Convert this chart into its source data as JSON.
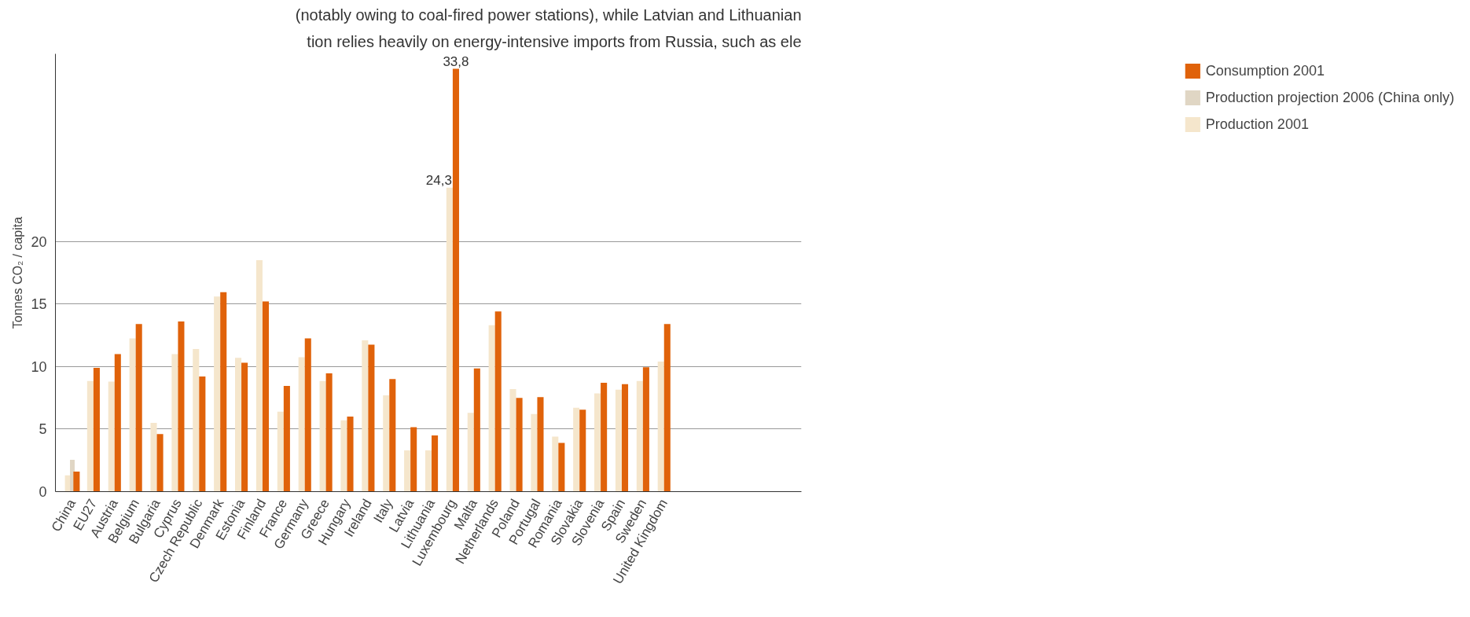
{
  "chart_data": {
    "type": "bar",
    "ylabel": "Tonnes CO₂ / capita",
    "categories": [
      "China",
      "EU27",
      "Austria",
      "Belgium",
      "Bulgaria",
      "Cyprus",
      "Czech Republic",
      "Denmark",
      "Estonia",
      "Finland",
      "France",
      "Germany",
      "Greece",
      "Hungary",
      "Ireland",
      "Italy",
      "Latvia",
      "Lithuania",
      "Luxembourg",
      "Malta",
      "Netherlands",
      "Poland",
      "Portugal",
      "Romania",
      "Slovakia",
      "Slovenia",
      "Spain",
      "Sweden",
      "United Kingdom"
    ],
    "series": [
      {
        "name": "Production 2001",
        "color": "#f5e6cc",
        "values": [
          1.3,
          8.85,
          8.8,
          12.25,
          5.5,
          11.0,
          11.4,
          15.6,
          10.7,
          18.5,
          6.4,
          10.75,
          8.85,
          5.7,
          12.1,
          7.7,
          3.3,
          3.3,
          24.3,
          6.3,
          13.3,
          8.2,
          6.2,
          4.4,
          6.7,
          7.85,
          8.15,
          8.85,
          10.4
        ],
        "value_labels": [
          null,
          null,
          null,
          null,
          null,
          null,
          null,
          null,
          null,
          null,
          null,
          null,
          null,
          null,
          null,
          null,
          null,
          null,
          "24,3",
          null,
          null,
          null,
          null,
          null,
          null,
          null,
          null,
          null,
          null
        ]
      },
      {
        "name": "Production projection 2006 (China only)",
        "color": "#e0d6c4",
        "values": [
          2.55,
          null,
          null,
          null,
          null,
          null,
          null,
          null,
          null,
          null,
          null,
          null,
          null,
          null,
          null,
          null,
          null,
          null,
          null,
          null,
          null,
          null,
          null,
          null,
          null,
          null,
          null,
          null,
          null
        ]
      },
      {
        "name": "Consumption 2001",
        "color": "#e0620a",
        "values": [
          1.6,
          9.9,
          11.0,
          13.4,
          4.6,
          13.6,
          9.2,
          15.95,
          10.3,
          15.2,
          8.45,
          12.25,
          9.45,
          6.0,
          11.75,
          9.0,
          5.15,
          4.5,
          33.8,
          9.85,
          14.4,
          7.5,
          7.55,
          3.9,
          6.55,
          8.7,
          8.6,
          9.95,
          13.4
        ],
        "value_labels": [
          null,
          null,
          null,
          null,
          null,
          null,
          null,
          null,
          null,
          null,
          null,
          null,
          null,
          null,
          null,
          null,
          null,
          null,
          "33,8",
          null,
          null,
          null,
          null,
          null,
          null,
          null,
          null,
          null,
          null
        ]
      }
    ],
    "ylim": [
      0,
      35
    ],
    "yticks": [
      0,
      5,
      10,
      15,
      20
    ],
    "grid": "y",
    "legend": "right",
    "annotations": [
      "(notably owing to coal-fired power stations), while Latvian and Lithuanian",
      "tion relies heavily on energy-intensive imports from Russia, such as ele"
    ]
  }
}
